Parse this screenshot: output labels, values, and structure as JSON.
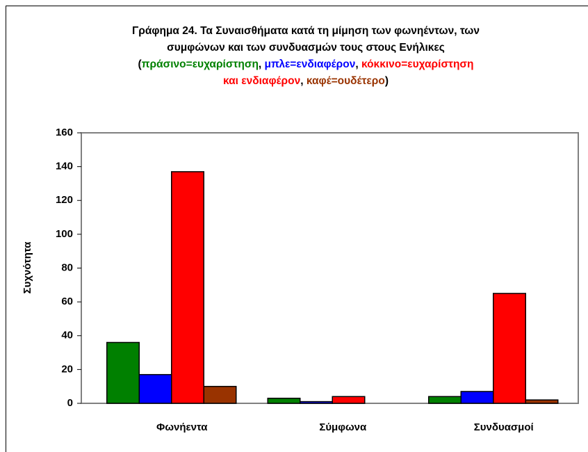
{
  "chart_data": {
    "type": "bar",
    "title_lines": [
      [
        {
          "text": "Γράφημα 24. Τα Συναισθήματα κατά τη μίμηση των φωνηέντων, των",
          "color": "#000000"
        }
      ],
      [
        {
          "text": "συμφώνων και των συνδυασμών τους στους Ενήλικες",
          "color": "#000000"
        }
      ],
      [
        {
          "text": "(",
          "color": "#000000"
        },
        {
          "text": "πράσινο=ευχαρίστηση",
          "color": "#008000"
        },
        {
          "text": ", ",
          "color": "#000000"
        },
        {
          "text": "μπλε=ενδιαφέρον",
          "color": "#0000ff"
        },
        {
          "text": ", ",
          "color": "#000000"
        },
        {
          "text": "κόκκινο=ευχαρίστηση",
          "color": "#ff0000"
        }
      ],
      [
        {
          "text": "και ενδιαφέρον",
          "color": "#ff0000"
        },
        {
          "text": ", ",
          "color": "#000000"
        },
        {
          "text": "καφέ=ουδέτερο",
          "color": "#993300"
        },
        {
          "text": ")",
          "color": "#000000"
        }
      ]
    ],
    "y_label": "Συχνότητα",
    "categories": [
      "Φωνήεντα",
      "Σύμφωνα",
      "Συνδυασμοί"
    ],
    "series": [
      {
        "color": "#008000",
        "values": [
          36,
          3,
          4
        ]
      },
      {
        "color": "#0000ff",
        "values": [
          17,
          1,
          7
        ]
      },
      {
        "color": "#ff0000",
        "values": [
          137,
          4,
          65
        ]
      },
      {
        "color": "#993300",
        "values": [
          10,
          0,
          2
        ]
      }
    ],
    "ylim": [
      0,
      160
    ],
    "yticks": [
      0,
      20,
      40,
      60,
      80,
      100,
      120,
      140,
      160
    ],
    "grid": false
  }
}
